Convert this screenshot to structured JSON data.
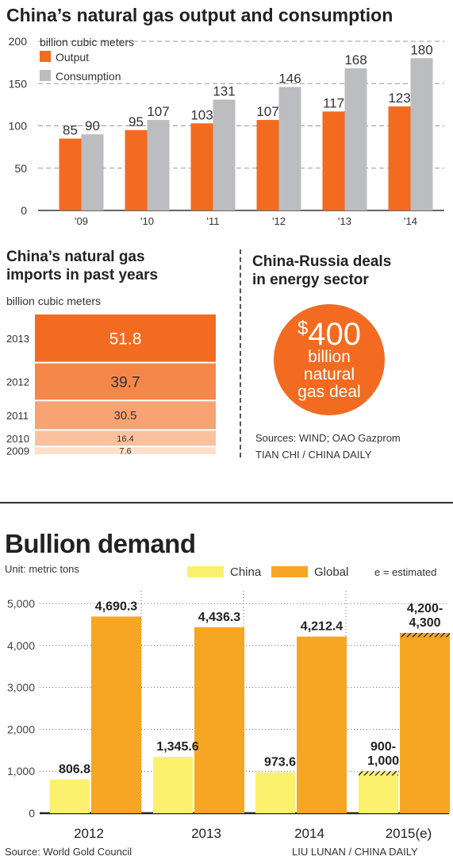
{
  "gas_chart": {
    "title": "China’s natural gas output and consumption",
    "unit": "billion cubic meters",
    "legend": [
      "Output",
      "Consumption"
    ],
    "colors": {
      "output": "#f26b21",
      "consumption": "#bcbdc0"
    }
  },
  "imports": {
    "title_line1": "China’s natural gas",
    "title_line2": "imports in past years",
    "unit": "billion cubic meters"
  },
  "deals": {
    "title_line1": "China-Russia deals",
    "title_line2": "in energy sector",
    "amount_symbol": "$",
    "amount": "400",
    "description": "billion\nnatural\ngas deal",
    "sources": "Sources: WIND; OAO Gazprom",
    "credit": "TIAN CHI / CHINA DAILY"
  },
  "bullion": {
    "title": "Bullion demand",
    "unit": "Unit: metric tons",
    "legend": [
      "China",
      "Global"
    ],
    "estimate_note": "e = estimated",
    "source": "Source: World Gold Council",
    "credit": "LIU LUNAN / CHINA DAILY",
    "colors": {
      "china": "#fbf16c",
      "global": "#f6a623"
    }
  },
  "chart_data": [
    {
      "type": "bar",
      "title": "China’s natural gas output and consumption",
      "ylabel": "billion cubic meters",
      "categories": [
        "'09",
        "'10",
        "'11",
        "'12",
        "'13",
        "'14"
      ],
      "series": [
        {
          "name": "Output",
          "values": [
            85,
            95,
            103,
            107,
            117,
            123
          ]
        },
        {
          "name": "Consumption",
          "values": [
            90,
            107,
            131,
            146,
            168,
            180
          ]
        }
      ],
      "ylim": [
        0,
        200
      ],
      "yticks": [
        0,
        50,
        100,
        150,
        200
      ],
      "grid": true,
      "legend_position": "top-left"
    },
    {
      "type": "bar",
      "title": "China’s natural gas imports in past years",
      "ylabel": "billion cubic meters",
      "categories": [
        "2013",
        "2012",
        "2011",
        "2010",
        "2009"
      ],
      "values": [
        51.8,
        39.7,
        30.5,
        16.4,
        7.6
      ],
      "value_labels": [
        "51.8",
        "39.7",
        "30.5",
        "16.4",
        "7.6"
      ]
    },
    {
      "type": "bar",
      "title": "Bullion demand",
      "ylabel": "Unit: metric tons",
      "categories": [
        "2012",
        "2013",
        "2014",
        "2015(e)"
      ],
      "series": [
        {
          "name": "China",
          "values": [
            806.8,
            1345.6,
            973.6,
            1000
          ],
          "labels": [
            "806.8",
            "1,345.6",
            "973.6",
            "900-\n1,000"
          ]
        },
        {
          "name": "Global",
          "values": [
            4690.3,
            4436.3,
            4212.4,
            4300
          ],
          "labels": [
            "4,690.3",
            "4,436.3",
            "4,212.4",
            "4,200-\n4,300"
          ]
        }
      ],
      "estimate_ranges": {
        "China": [
          900,
          1000
        ],
        "Global": [
          4200,
          4300
        ]
      },
      "ylim": [
        0,
        5000
      ],
      "yticks": [
        "0",
        "1,000",
        "2,000",
        "3,000",
        "4,000",
        "5,000"
      ],
      "grid": true,
      "legend_position": "top"
    }
  ]
}
